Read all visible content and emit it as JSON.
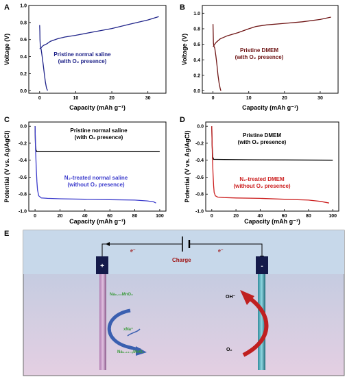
{
  "panel_letters": [
    "A",
    "B",
    "C",
    "D",
    "E"
  ],
  "colors": {
    "navy": "#1f2389",
    "maroon": "#6e1414",
    "blue": "#3c3ccc",
    "red": "#cc2020",
    "black": "#000000",
    "green": "#3a9a3a",
    "darkred_text": "#a01818",
    "water_top": "#b8cbe0",
    "water_bottom": "#e4cfe2"
  },
  "chart_data": [
    {
      "type": "line",
      "panel": "A",
      "xlabel": "Capacity (mAh g⁻¹)",
      "ylabel": "Voltage (V)",
      "xlim": [
        -3,
        35
      ],
      "ylim": [
        -0.03,
        1.0
      ],
      "xticks": [
        0,
        10,
        20,
        30
      ],
      "yticks": [
        0.0,
        0.2,
        0.4,
        0.6,
        0.8,
        1.0
      ],
      "yticklabels": [
        "0.0",
        "0.2",
        "0.4",
        "0.6",
        "0.8",
        "1.0"
      ],
      "series": [
        {
          "name": "Pristine normal saline (with O₂ presence)",
          "color": "#1f2389",
          "x": [
            0,
            0.05,
            0.1,
            0.2,
            0.4,
            0.7,
            1.0,
            1.3,
            1.6,
            1.9,
            2.2
          ],
          "y": [
            0.77,
            0.7,
            0.6,
            0.52,
            0.49,
            0.4,
            0.3,
            0.2,
            0.1,
            0.03,
            0.0
          ]
        },
        {
          "name": "",
          "color": "#1f2389",
          "x": [
            0,
            0.3,
            1,
            2,
            3,
            5,
            7,
            10,
            15,
            20,
            25,
            30,
            33
          ],
          "y": [
            0.49,
            0.5,
            0.53,
            0.55,
            0.58,
            0.61,
            0.63,
            0.65,
            0.69,
            0.73,
            0.78,
            0.83,
            0.87
          ]
        }
      ],
      "annotation": [
        "Pristine normal saline",
        "(with O₂ presence)"
      ]
    },
    {
      "type": "line",
      "panel": "B",
      "xlabel": "Capacity (mAh g⁻¹)",
      "ylabel": "Voltage (V)",
      "xlim": [
        -3,
        35
      ],
      "ylim": [
        -0.03,
        1.1
      ],
      "xticks": [
        0,
        10,
        20,
        30
      ],
      "yticks": [
        0.0,
        0.2,
        0.4,
        0.6,
        0.8,
        1.0
      ],
      "yticklabels": [
        "0.0",
        "0.2",
        "0.4",
        "0.6",
        "0.8",
        "1.0"
      ],
      "series": [
        {
          "name": "Pristine DMEM (with O₂ presence)",
          "color": "#6e1414",
          "x": [
            0,
            0.05,
            0.1,
            0.2,
            0.5,
            0.8,
            1.1,
            1.4,
            1.7,
            2.0,
            2.2
          ],
          "y": [
            0.86,
            0.75,
            0.62,
            0.58,
            0.55,
            0.45,
            0.33,
            0.2,
            0.1,
            0.03,
            0.0
          ]
        },
        {
          "name": "",
          "color": "#6e1414",
          "x": [
            0,
            0.2,
            0.6,
            1,
            2,
            4,
            7,
            10,
            12,
            15,
            20,
            25,
            30,
            33
          ],
          "y": [
            0.57,
            0.58,
            0.61,
            0.63,
            0.67,
            0.71,
            0.75,
            0.8,
            0.83,
            0.85,
            0.87,
            0.89,
            0.92,
            0.95
          ]
        }
      ],
      "annotation": [
        "Pristine DMEM",
        "(with O₂ presence)"
      ]
    },
    {
      "type": "line",
      "panel": "C",
      "xlabel": "Capacity (mAh g⁻¹)",
      "ylabel": "Potential (V vs. Ag/AgCl)",
      "xlim": [
        -5,
        105
      ],
      "ylim": [
        -1.0,
        0.05
      ],
      "xticks": [
        0,
        20,
        40,
        60,
        80,
        100
      ],
      "yticks": [
        0.0,
        -0.2,
        -0.4,
        -0.6,
        -0.8,
        -1.0
      ],
      "yticklabels": [
        "0.0",
        "-0.2",
        "-0.4",
        "-0.6",
        "-0.8",
        "-1.0"
      ],
      "series": [
        {
          "name": "Pristine normal saline (with O₂ presence)",
          "color": "#000000",
          "x": [
            0,
            0.3,
            0.8,
            1.5,
            3,
            10,
            30,
            60,
            100
          ],
          "y": [
            0.0,
            -0.2,
            -0.28,
            -0.3,
            -0.3,
            -0.3,
            -0.3,
            -0.3,
            -0.3
          ]
        },
        {
          "name": "N₂-treated normal saline (without O₂ presence)",
          "color": "#3c3ccc",
          "x": [
            0,
            0.5,
            1,
            1.5,
            2,
            3,
            5,
            10,
            20,
            40,
            60,
            80,
            90,
            95,
            97
          ],
          "y": [
            0.0,
            -0.3,
            -0.5,
            -0.65,
            -0.75,
            -0.82,
            -0.845,
            -0.85,
            -0.855,
            -0.86,
            -0.865,
            -0.87,
            -0.88,
            -0.89,
            -0.905
          ]
        }
      ],
      "annotations": [
        {
          "lines": [
            "Pristine normal saline",
            "(with O₂ presence)"
          ],
          "color": "#000000"
        },
        {
          "lines": [
            "N₂-treated normal saline",
            "(without O₂ presence)"
          ],
          "color": "#3c3ccc"
        }
      ]
    },
    {
      "type": "line",
      "panel": "D",
      "xlabel": "Capacity (mAh g⁻¹)",
      "ylabel": "Potential (V vs. Ag/AgCl)",
      "xlim": [
        -5,
        105
      ],
      "ylim": [
        -1.0,
        0.05
      ],
      "xticks": [
        0,
        20,
        40,
        60,
        80,
        100
      ],
      "yticks": [
        0.0,
        -0.2,
        -0.4,
        -0.6,
        -0.8,
        -1.0
      ],
      "yticklabels": [
        "0.0",
        "-0.2",
        "-0.4",
        "-0.6",
        "-0.8",
        "-1.0"
      ],
      "series": [
        {
          "name": "Pristine DMEM (with O₂ presence)",
          "color": "#000000",
          "x": [
            0,
            0.3,
            0.8,
            1.5,
            3,
            10,
            30,
            60,
            100
          ],
          "y": [
            0.0,
            -0.22,
            -0.36,
            -0.39,
            -0.39,
            -0.392,
            -0.394,
            -0.397,
            -0.4
          ]
        },
        {
          "name": "N₂-treated DMEM (without O₂ presence)",
          "color": "#cc2020",
          "x": [
            0,
            0.5,
            1,
            1.5,
            2,
            3,
            5,
            10,
            20,
            40,
            60,
            80,
            90,
            97
          ],
          "y": [
            0.0,
            -0.35,
            -0.55,
            -0.7,
            -0.78,
            -0.82,
            -0.835,
            -0.84,
            -0.845,
            -0.85,
            -0.86,
            -0.87,
            -0.885,
            -0.905
          ]
        }
      ],
      "annotations": [
        {
          "lines": [
            "Pristine DMEM",
            "(with O₂ presence)"
          ],
          "color": "#000000"
        },
        {
          "lines": [
            "N₂-treated DMEM",
            "(without O₂ presence)"
          ],
          "color": "#cc2020"
        }
      ]
    }
  ],
  "schematic": {
    "electron_left": "e⁻",
    "electron_right": "e⁻",
    "charge_label": "Charge",
    "anode_sign": "+",
    "cathode_sign": "-",
    "oxide_top": "Na₀.₄₄MnO₂",
    "ion_label": "xNa⁺",
    "oxide_bottom": "Na₀.₄₄₋ₓMnO₂",
    "hydroxide_label": "OH⁻",
    "oxygen_label": "O₂"
  }
}
